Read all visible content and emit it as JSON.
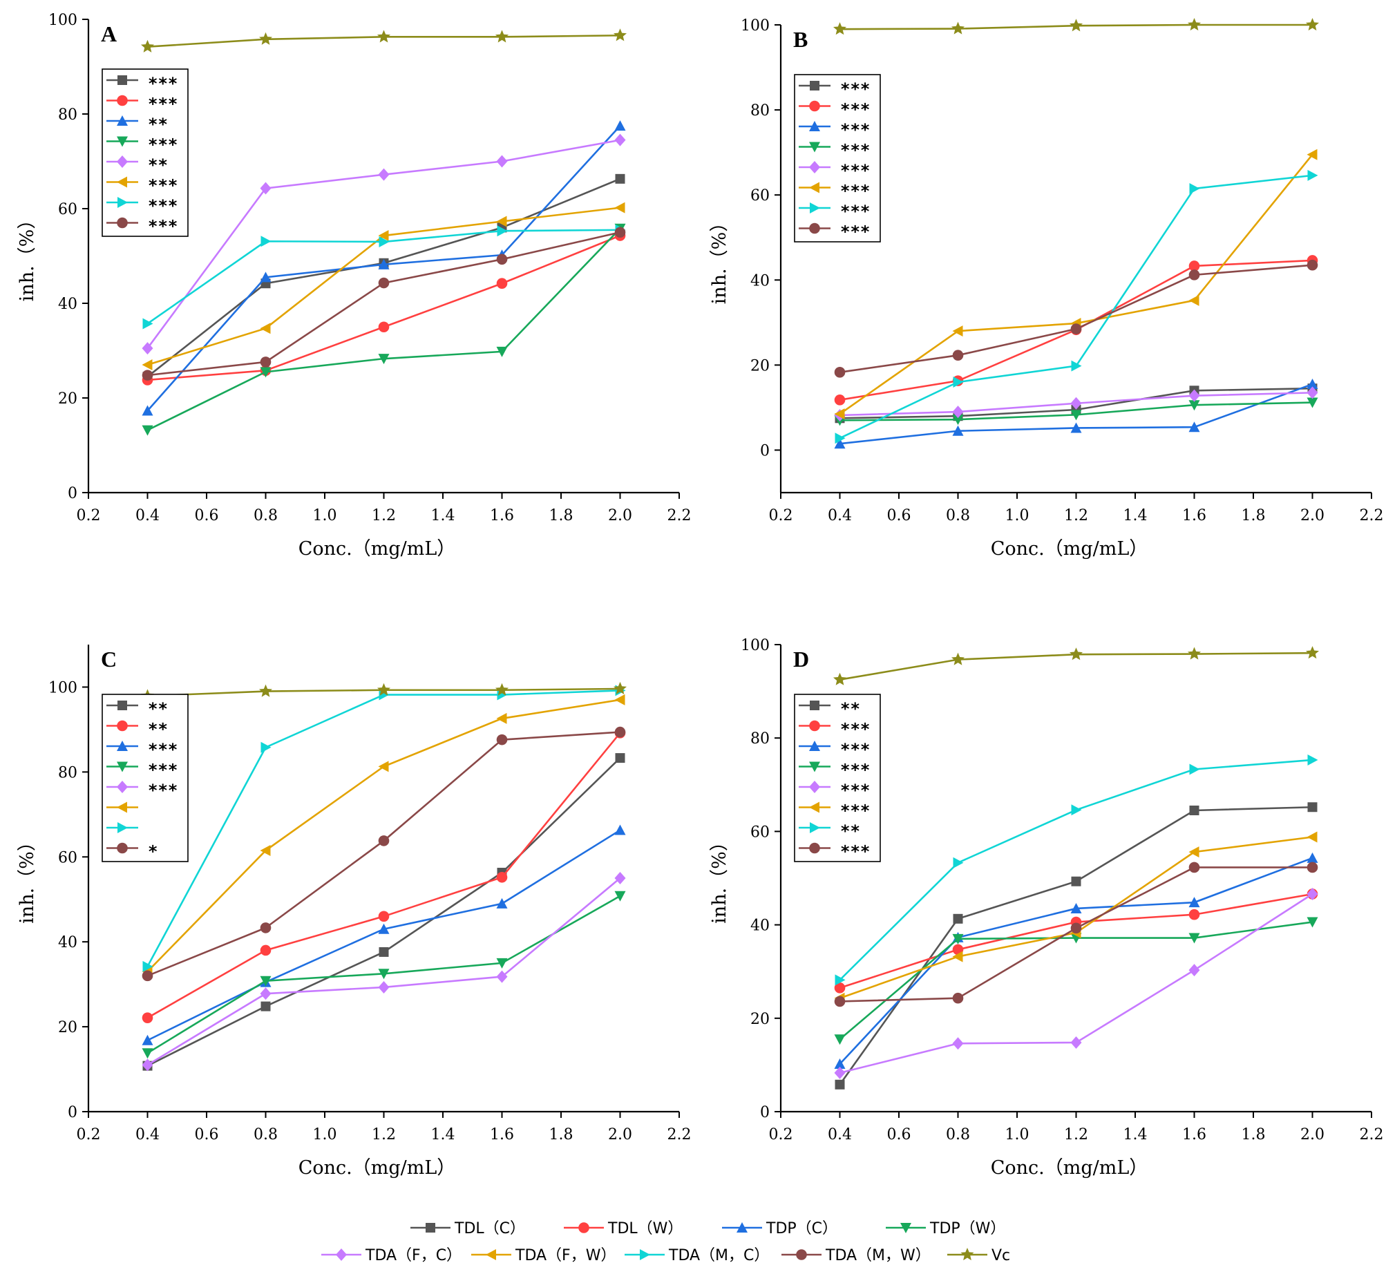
{
  "chart_data": [
    {
      "type": "line",
      "panel": "A",
      "xlabel": "Conc. (mg/mL)",
      "ylabel": "inh. (%)",
      "xlim": [
        0.2,
        2.2
      ],
      "ylim": [
        0,
        100
      ],
      "xticks": [
        0.2,
        0.4,
        0.6,
        0.8,
        1.0,
        1.2,
        1.4,
        1.6,
        1.8,
        2.0,
        2.2
      ],
      "xtick_labels": [
        "0.2",
        "0.4",
        "0.6",
        "0.8",
        "1.0",
        "1.2",
        "1.4",
        "1.6",
        "1.8",
        "2.0",
        "2.2"
      ],
      "yticks": [
        0,
        20,
        40,
        60,
        80,
        100
      ],
      "ytick_labels": [
        "0",
        "20",
        "40",
        "60",
        "80",
        "100"
      ],
      "x": [
        0.4,
        0.8,
        1.2,
        1.6,
        2.0
      ],
      "significance": [
        "***",
        "***",
        "**",
        "***",
        "**",
        "***",
        "***",
        "***"
      ],
      "series": [
        {
          "name": "TDL (C)",
          "values": [
            24.5,
            44.2,
            48.5,
            56.0,
            66.3
          ]
        },
        {
          "name": "TDL (W)",
          "values": [
            23.8,
            25.8,
            35.0,
            44.2,
            54.3
          ]
        },
        {
          "name": "TDP (C)",
          "values": [
            17.3,
            45.5,
            48.2,
            50.2,
            77.5
          ]
        },
        {
          "name": "TDP (W)",
          "values": [
            13.2,
            25.5,
            28.3,
            29.8,
            55.8
          ]
        },
        {
          "name": "TDA (F, C)",
          "values": [
            30.5,
            64.3,
            67.2,
            70.0,
            74.5
          ]
        },
        {
          "name": "TDA (F, W)",
          "values": [
            27.0,
            34.7,
            54.3,
            57.3,
            60.2
          ]
        },
        {
          "name": "TDA (M, C)",
          "values": [
            35.7,
            53.1,
            53.0,
            55.3,
            55.5
          ]
        },
        {
          "name": "TDA (M, W)",
          "values": [
            24.8,
            27.6,
            44.3,
            49.3,
            55.0
          ]
        },
        {
          "name": "Vc",
          "values": [
            94.2,
            95.8,
            96.3,
            96.3,
            96.6
          ]
        }
      ]
    },
    {
      "type": "line",
      "panel": "B",
      "xlabel": "Conc. (mg/mL)",
      "ylabel": "inh. (%)",
      "xlim": [
        0.2,
        2.2
      ],
      "ylim": [
        -10,
        100
      ],
      "xticks": [
        0.2,
        0.4,
        0.6,
        0.8,
        1.0,
        1.2,
        1.4,
        1.6,
        1.8,
        2.0,
        2.2
      ],
      "xtick_labels": [
        "0.2",
        "0.4",
        "0.6",
        "0.8",
        "1.0",
        "1.2",
        "1.4",
        "1.6",
        "1.8",
        "2.0",
        "2.2"
      ],
      "yticks": [
        0,
        20,
        40,
        60,
        80,
        100
      ],
      "ytick_labels": [
        "0",
        "20",
        "40",
        "60",
        "80",
        "100"
      ],
      "x": [
        0.4,
        0.8,
        1.2,
        1.6,
        2.0
      ],
      "significance": [
        "***",
        "***",
        "***",
        "***",
        "***",
        "***",
        "***",
        "***"
      ],
      "series": [
        {
          "name": "TDL (C)",
          "values": [
            7.5,
            8.0,
            9.5,
            14.0,
            14.5
          ]
        },
        {
          "name": "TDL (W)",
          "values": [
            11.8,
            16.3,
            28.3,
            43.3,
            44.6
          ]
        },
        {
          "name": "TDP (C)",
          "values": [
            1.5,
            4.5,
            5.2,
            5.4,
            15.5
          ]
        },
        {
          "name": "TDP (W)",
          "values": [
            7.0,
            7.2,
            8.3,
            10.6,
            11.2
          ]
        },
        {
          "name": "TDA (F, C)",
          "values": [
            8.2,
            9.0,
            11.0,
            12.8,
            13.5
          ]
        },
        {
          "name": "TDA (F, W)",
          "values": [
            8.5,
            28.0,
            29.8,
            35.2,
            69.5
          ]
        },
        {
          "name": "TDA (M, C)",
          "values": [
            2.8,
            16.0,
            19.8,
            61.5,
            64.6
          ]
        },
        {
          "name": "TDA (M, W)",
          "values": [
            18.3,
            22.3,
            28.5,
            41.2,
            43.5
          ]
        },
        {
          "name": "Vc",
          "values": [
            99.0,
            99.1,
            99.8,
            100.0,
            100.0
          ]
        }
      ]
    },
    {
      "type": "line",
      "panel": "C",
      "xlabel": "Conc. (mg/mL)",
      "ylabel": "inh. (%)",
      "xlim": [
        0.2,
        2.2
      ],
      "ylim": [
        0,
        110
      ],
      "xticks": [
        0.2,
        0.4,
        0.6,
        0.8,
        1.0,
        1.2,
        1.4,
        1.6,
        1.8,
        2.0,
        2.2
      ],
      "xtick_labels": [
        "0.2",
        "0.4",
        "0.6",
        "0.8",
        "1.0",
        "1.2",
        "1.4",
        "1.6",
        "1.8",
        "2.0",
        "2.2"
      ],
      "yticks": [
        0,
        20,
        40,
        60,
        80,
        100
      ],
      "ytick_labels": [
        "0",
        "20",
        "40",
        "60",
        "80",
        "100"
      ],
      "x": [
        0.4,
        0.8,
        1.2,
        1.6,
        2.0
      ],
      "significance": [
        "**",
        "**",
        "***",
        "***",
        "***",
        "",
        "",
        "*"
      ],
      "series": [
        {
          "name": "TDL (C)",
          "values": [
            10.8,
            24.8,
            37.6,
            56.3,
            83.3
          ]
        },
        {
          "name": "TDL (W)",
          "values": [
            22.1,
            38.0,
            46.0,
            55.2,
            89.2
          ]
        },
        {
          "name": "TDP (C)",
          "values": [
            16.8,
            30.5,
            43.0,
            49.0,
            66.3
          ]
        },
        {
          "name": "TDP (W)",
          "values": [
            13.8,
            30.8,
            32.5,
            35.0,
            50.8
          ]
        },
        {
          "name": "TDA (F, C)",
          "values": [
            11.0,
            27.8,
            29.3,
            31.8,
            55.0
          ]
        },
        {
          "name": "TDA (F, W)",
          "values": [
            33.0,
            61.5,
            81.3,
            92.6,
            97.0
          ]
        },
        {
          "name": "TDA (M, C)",
          "values": [
            34.2,
            85.8,
            98.2,
            98.2,
            99.2
          ]
        },
        {
          "name": "TDA (M, W)",
          "values": [
            32.0,
            43.3,
            63.8,
            87.6,
            89.4
          ]
        },
        {
          "name": "Vc",
          "values": [
            97.9,
            99.0,
            99.3,
            99.3,
            99.6
          ]
        }
      ]
    },
    {
      "type": "line",
      "panel": "D",
      "xlabel": "Conc. (mg/mL)",
      "ylabel": "inh. (%)",
      "xlim": [
        0.2,
        2.2
      ],
      "ylim": [
        0,
        100
      ],
      "xticks": [
        0.2,
        0.4,
        0.6,
        0.8,
        1.0,
        1.2,
        1.4,
        1.6,
        1.8,
        2.0,
        2.2
      ],
      "xtick_labels": [
        "0.2",
        "0.4",
        "0.6",
        "0.8",
        "1.0",
        "1.2",
        "1.4",
        "1.6",
        "1.8",
        "2.0",
        "2.2"
      ],
      "yticks": [
        0,
        20,
        40,
        60,
        80,
        100
      ],
      "ytick_labels": [
        "0",
        "20",
        "40",
        "60",
        "80",
        "100"
      ],
      "x": [
        0.4,
        0.8,
        1.2,
        1.6,
        2.0
      ],
      "significance": [
        "**",
        "***",
        "***",
        "***",
        "***",
        "***",
        "**",
        "***"
      ],
      "series": [
        {
          "name": "TDL (C)",
          "values": [
            5.8,
            41.3,
            49.3,
            64.5,
            65.2
          ]
        },
        {
          "name": "TDL (W)",
          "values": [
            26.5,
            34.7,
            40.6,
            42.2,
            46.6
          ]
        },
        {
          "name": "TDP (C)",
          "values": [
            10.2,
            37.3,
            43.5,
            44.8,
            54.3
          ]
        },
        {
          "name": "TDP (W)",
          "values": [
            15.5,
            37.0,
            37.2,
            37.2,
            40.6
          ]
        },
        {
          "name": "TDA (F, C)",
          "values": [
            8.3,
            14.6,
            14.8,
            30.3,
            46.6
          ]
        },
        {
          "name": "TDA (F, W)",
          "values": [
            24.3,
            33.2,
            38.3,
            55.6,
            58.8
          ]
        },
        {
          "name": "TDA (M, C)",
          "values": [
            28.2,
            53.3,
            64.6,
            73.3,
            75.3
          ]
        },
        {
          "name": "TDA (M, W)",
          "values": [
            23.6,
            24.3,
            39.3,
            52.3,
            52.3
          ]
        },
        {
          "name": "Vc",
          "values": [
            92.5,
            96.8,
            97.9,
            98.0,
            98.2
          ]
        }
      ]
    }
  ],
  "series_styles": [
    {
      "name": "TDL (C)",
      "color": "#555555",
      "marker": "square"
    },
    {
      "name": "TDL (W)",
      "color": "#ff4040",
      "marker": "circle"
    },
    {
      "name": "TDP (C)",
      "color": "#1f6fe0",
      "marker": "triangle-up"
    },
    {
      "name": "TDP (W)",
      "color": "#17a85a",
      "marker": "triangle-down"
    },
    {
      "name": "TDA (F, C)",
      "color": "#c77aff",
      "marker": "diamond"
    },
    {
      "name": "TDA (F, W)",
      "color": "#e3a300",
      "marker": "triangle-left"
    },
    {
      "name": "TDA (M, C)",
      "color": "#10d5d5",
      "marker": "triangle-right"
    },
    {
      "name": "TDA (M, W)",
      "color": "#8a4848",
      "marker": "circle"
    },
    {
      "name": "Vc",
      "color": "#8c8c1a",
      "marker": "star"
    }
  ],
  "legend_labels": [
    "TDL（C）",
    "TDL（W）",
    "TDP（C）",
    "TDP（W）",
    "TDA（F，C）",
    "TDA（F，W）",
    "TDA（M，C）",
    "TDA（M，W）",
    "Vc"
  ],
  "axis_text": {
    "xlabel": "Conc.（mg/mL）",
    "ylabel": "inh.（%）"
  }
}
